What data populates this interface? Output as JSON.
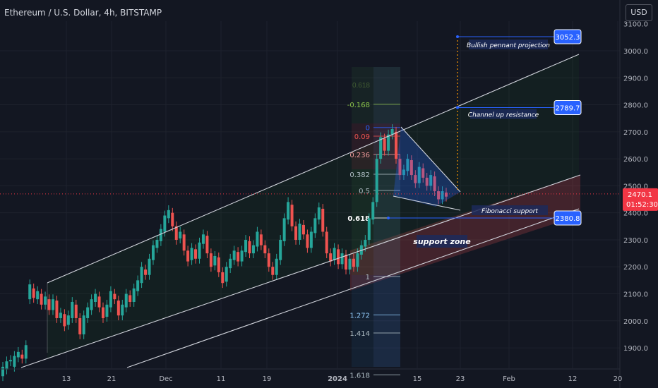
{
  "header": {
    "title": "Ethereum / U.S. Dollar, 4h, BITSTAMP",
    "currency_button": "USD"
  },
  "chart_data": {
    "type": "candlestick",
    "title": "Ethereum / U.S. Dollar, 4h, BITSTAMP",
    "x_ticks": [
      "13",
      "21",
      "Dec",
      "11",
      "19",
      "2024",
      "15",
      "23",
      "Feb",
      "12",
      "20"
    ],
    "y_ticks": [
      1900,
      2000,
      2100,
      2200,
      2300,
      2400,
      2500,
      2600,
      2700,
      2800,
      2900,
      3000
    ],
    "y_top_partial_tick": "3100.0",
    "ylim": [
      1800,
      3115
    ],
    "grid": true,
    "current_price": {
      "label": "2470.1",
      "countdown": "01:52:30",
      "value": 2470.1
    },
    "price_path": [
      [
        1795,
        1830
      ],
      [
        1820,
        1850
      ],
      [
        1850,
        1855
      ],
      [
        1830,
        1870
      ],
      [
        1865,
        1885
      ],
      [
        1875,
        1860
      ],
      [
        1860,
        1910
      ],
      [
        2080,
        2135
      ],
      [
        2120,
        2085
      ],
      [
        2080,
        2110
      ],
      [
        2100,
        2060
      ],
      [
        2060,
        2090
      ],
      [
        2080,
        2040
      ],
      [
        2040,
        2080
      ],
      [
        2075,
        2010
      ],
      [
        2010,
        2030
      ],
      [
        2025,
        1980
      ],
      [
        1985,
        2020
      ],
      [
        2010,
        2070
      ],
      [
        2060,
        2010
      ],
      [
        2010,
        1950
      ],
      [
        1950,
        2020
      ],
      [
        2010,
        2050
      ],
      [
        2040,
        2080
      ],
      [
        2070,
        2100
      ],
      [
        2090,
        2050
      ],
      [
        2050,
        2010
      ],
      [
        2015,
        2060
      ],
      [
        2050,
        2110
      ],
      [
        2100,
        2080
      ],
      [
        2075,
        2020
      ],
      [
        2020,
        2060
      ],
      [
        2050,
        2100
      ],
      [
        2095,
        2070
      ],
      [
        2070,
        2120
      ],
      [
        2110,
        2150
      ],
      [
        2140,
        2200
      ],
      [
        2190,
        2170
      ],
      [
        2170,
        2230
      ],
      [
        2225,
        2280
      ],
      [
        2270,
        2300
      ],
      [
        2295,
        2340
      ],
      [
        2330,
        2390
      ],
      [
        2380,
        2410
      ],
      [
        2400,
        2350
      ],
      [
        2350,
        2300
      ],
      [
        2305,
        2330
      ],
      [
        2320,
        2260
      ],
      [
        2260,
        2220
      ],
      [
        2225,
        2270
      ],
      [
        2265,
        2230
      ],
      [
        2230,
        2290
      ],
      [
        2285,
        2320
      ],
      [
        2315,
        2250
      ],
      [
        2250,
        2200
      ],
      [
        2205,
        2240
      ],
      [
        2235,
        2180
      ],
      [
        2180,
        2140
      ],
      [
        2145,
        2200
      ],
      [
        2195,
        2230
      ],
      [
        2225,
        2260
      ],
      [
        2255,
        2220
      ],
      [
        2220,
        2260
      ],
      [
        2255,
        2300
      ],
      [
        2295,
        2250
      ],
      [
        2250,
        2280
      ],
      [
        2275,
        2330
      ],
      [
        2320,
        2280
      ],
      [
        2280,
        2250
      ],
      [
        2250,
        2200
      ],
      [
        2200,
        2170
      ],
      [
        2170,
        2230
      ],
      [
        2225,
        2300
      ],
      [
        2295,
        2380
      ],
      [
        2375,
        2440
      ],
      [
        2430,
        2350
      ],
      [
        2350,
        2300
      ],
      [
        2300,
        2360
      ],
      [
        2355,
        2320
      ],
      [
        2320,
        2270
      ],
      [
        2270,
        2330
      ],
      [
        2325,
        2380
      ],
      [
        2375,
        2420
      ],
      [
        2415,
        2330
      ],
      [
        2330,
        2250
      ],
      [
        2250,
        2220
      ],
      [
        2225,
        2270
      ],
      [
        2265,
        2210
      ],
      [
        2210,
        2250
      ],
      [
        2245,
        2190
      ],
      [
        2190,
        2230
      ],
      [
        2230,
        2200
      ],
      [
        2200,
        2250
      ],
      [
        2245,
        2280
      ],
      [
        2275,
        2300
      ],
      [
        2300,
        2380
      ],
      [
        2375,
        2440
      ],
      [
        2440,
        2600
      ],
      [
        2600,
        2680
      ],
      [
        2675,
        2630
      ],
      [
        2630,
        2690
      ],
      [
        2690,
        2710
      ],
      [
        2700,
        2600
      ],
      [
        2600,
        2540
      ],
      [
        2540,
        2560
      ],
      [
        2555,
        2600
      ],
      [
        2595,
        2540
      ],
      [
        2540,
        2510
      ],
      [
        2510,
        2570
      ],
      [
        2565,
        2530
      ],
      [
        2530,
        2500
      ],
      [
        2500,
        2540
      ],
      [
        2535,
        2480
      ],
      [
        2480,
        2450
      ],
      [
        2450,
        2480
      ],
      [
        2475,
        2460
      ]
    ],
    "channel": {
      "upper": [
        [
          "Nov 6",
          2130
        ],
        [
          "Feb 12",
          2980
        ]
      ],
      "middle": [
        [
          "Nov 6",
          1780
        ],
        [
          "Feb 20",
          2530
        ]
      ],
      "lower": [
        [
          "Nov 13",
          1780
        ],
        [
          "Feb 12",
          2390
        ]
      ]
    },
    "pennant": {
      "upper": [
        [
          "Jan 12",
          2720
        ],
        [
          "Jan 22",
          2470
        ]
      ],
      "lower": [
        [
          "Jan 9",
          2490
        ],
        [
          "Jan 22",
          2400
        ]
      ]
    },
    "fibonacci": {
      "levels": [
        {
          "label": "-0.168",
          "value": 2802,
          "color": "#8bc34a"
        },
        {
          "label": "0",
          "value": 2716,
          "color": "#2962ff"
        },
        {
          "label": "0.09",
          "value": 2684,
          "color": "#ef5350"
        },
        {
          "label": "0.236",
          "value": 2616,
          "color": "#ef9a9a"
        },
        {
          "label": "0.382",
          "value": 2543,
          "color": "#b0bec5"
        },
        {
          "label": "0.5",
          "value": 2483,
          "color": "#b0bec5"
        },
        {
          "label": "0.618",
          "value": 2381,
          "color": "#ffffff"
        },
        {
          "label": "1",
          "value": 2164,
          "color": "#b0bec5"
        },
        {
          "label": "1.272",
          "value": 2022,
          "color": "#90caf9"
        },
        {
          "label": "1.414",
          "value": 1955,
          "color": "#b0bec5"
        },
        {
          "label": "1.618",
          "value": 1800,
          "color": "#b0bec5"
        }
      ],
      "faded_top_label": "0.618"
    },
    "annotations": [
      {
        "text": "Bullish pennant projection",
        "value": 3052.3,
        "price_label": "3052.3"
      },
      {
        "text": "Channel up resistance",
        "value": 2789.7,
        "price_label": "2789.7"
      },
      {
        "text": "Fibonacci support",
        "value": 2380.8,
        "price_label": "2380.8"
      },
      {
        "text": "support zone"
      }
    ],
    "colors": {
      "bull": "#26a69a",
      "bear": "#ef5350",
      "background": "#131722",
      "price_line": "#f23645",
      "annotation": "#2962ff"
    }
  }
}
